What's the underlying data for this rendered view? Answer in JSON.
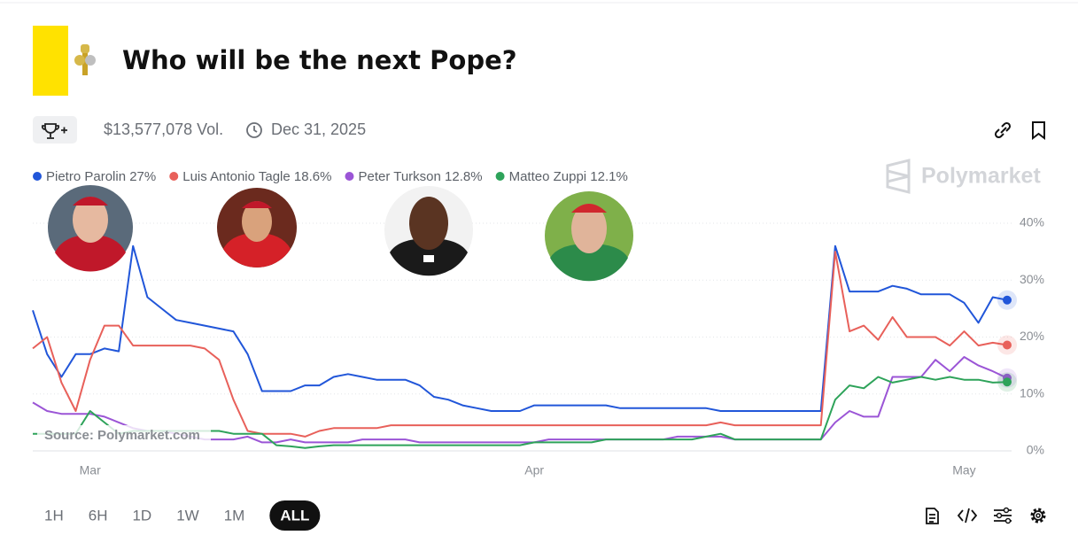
{
  "header": {
    "title": "Who will be the next Pope?"
  },
  "stats": {
    "volume": "$13,577,078 Vol.",
    "end_date": "Dec 31, 2025"
  },
  "brand": "Polymarket",
  "time_ranges": {
    "options": [
      "1H",
      "6H",
      "1D",
      "1W",
      "1M",
      "ALL"
    ],
    "selected": 5
  },
  "chart_data": {
    "type": "line",
    "source": "Source: Polymarket.com",
    "categories": [
      null,
      null,
      null,
      null,
      "Mar",
      null,
      null,
      null,
      null,
      null,
      null,
      null,
      null,
      null,
      null,
      null,
      null,
      null,
      null,
      null,
      null,
      null,
      null,
      null,
      null,
      null,
      null,
      null,
      null,
      null,
      null,
      null,
      null,
      null,
      null,
      "Apr",
      null,
      null,
      null,
      null,
      null,
      null,
      null,
      null,
      null,
      null,
      null,
      null,
      null,
      null,
      null,
      null,
      null,
      null,
      null,
      null,
      null,
      null,
      null,
      null,
      null,
      null,
      null,
      null,
      null,
      "May",
      null,
      null,
      null
    ],
    "ylim": [
      0,
      40
    ],
    "yticks": [
      {
        "value": 0,
        "label": "0%"
      },
      {
        "value": 10,
        "label": "10%"
      },
      {
        "value": 20,
        "label": "20%"
      },
      {
        "value": 30,
        "label": "30%"
      },
      {
        "value": 40,
        "label": "40%"
      }
    ],
    "grid": true,
    "series": [
      {
        "name": "Pietro Parolin",
        "current": "27%",
        "color": "#2156d9",
        "values": [
          24.7,
          17,
          13,
          17,
          17,
          18,
          17.5,
          36,
          27,
          25,
          23,
          22.5,
          22,
          21.5,
          21,
          17,
          10.5,
          10.5,
          10.5,
          11.5,
          11.5,
          13,
          13.5,
          13,
          12.5,
          12.5,
          12.5,
          11.5,
          9.5,
          9,
          8,
          7.5,
          7,
          7,
          7,
          8,
          8,
          8,
          8,
          8,
          8,
          7.5,
          7.5,
          7.5,
          7.5,
          7.5,
          7.5,
          7.5,
          7,
          7,
          7,
          7,
          7,
          7,
          7,
          7,
          36,
          28,
          28,
          28,
          29,
          28.5,
          27.5,
          27.5,
          27.5,
          26,
          22.5,
          27,
          26.5
        ]
      },
      {
        "name": "Luis Antonio Tagle",
        "current": "18.6%",
        "color": "#e8605a",
        "values": [
          18,
          20,
          12,
          7,
          16,
          22,
          22,
          18.5,
          18.5,
          18.5,
          18.5,
          18.5,
          18,
          16,
          9,
          3.5,
          3,
          3,
          3,
          2.5,
          3.5,
          4,
          4,
          4,
          4,
          4.5,
          4.5,
          4.5,
          4.5,
          4.5,
          4.5,
          4.5,
          4.5,
          4.5,
          4.5,
          4.5,
          4.5,
          4.5,
          4.5,
          4.5,
          4.5,
          4.5,
          4.5,
          4.5,
          4.5,
          4.5,
          4.5,
          4.5,
          5,
          4.5,
          4.5,
          4.5,
          4.5,
          4.5,
          4.5,
          4.5,
          35,
          21,
          22,
          19.5,
          23.5,
          20,
          20,
          20,
          18.5,
          21,
          18.5,
          19,
          18.6
        ]
      },
      {
        "name": "Peter Turkson",
        "current": "12.8%",
        "color": "#9b55d6",
        "values": [
          8.5,
          7,
          6.5,
          6.5,
          6.5,
          6,
          5,
          4,
          3.5,
          3.5,
          3,
          2.5,
          2,
          2,
          2,
          2.5,
          1.5,
          1.5,
          2,
          1.5,
          1.5,
          1.5,
          1.5,
          2,
          2,
          2,
          2,
          1.5,
          1.5,
          1.5,
          1.5,
          1.5,
          1.5,
          1.5,
          1.5,
          1.5,
          2,
          2,
          2,
          2,
          2,
          2,
          2,
          2,
          2,
          2.5,
          2.5,
          2.5,
          2.5,
          2,
          2,
          2,
          2,
          2,
          2,
          2,
          5,
          7,
          6,
          6,
          13,
          13,
          13,
          16,
          14,
          16.5,
          15,
          14,
          12.8
        ]
      },
      {
        "name": "Matteo Zuppi",
        "current": "12.1%",
        "color": "#2ea35a",
        "values": [
          3,
          3,
          3,
          3,
          7,
          5,
          3,
          3.5,
          3.5,
          3.5,
          3.5,
          3.5,
          3.5,
          3.5,
          3,
          3,
          3,
          1,
          0.8,
          0.5,
          0.8,
          1,
          1,
          1,
          1,
          1,
          1,
          1,
          1,
          1,
          1,
          1,
          1,
          1,
          1,
          1.5,
          1.5,
          1.5,
          1.5,
          1.5,
          2,
          2,
          2,
          2,
          2,
          2,
          2,
          2.5,
          3,
          2,
          2,
          2,
          2,
          2,
          2,
          2,
          9,
          11.5,
          11,
          13,
          12,
          12.5,
          13,
          12.5,
          13,
          12.5,
          12.5,
          12,
          12.1
        ]
      }
    ]
  }
}
